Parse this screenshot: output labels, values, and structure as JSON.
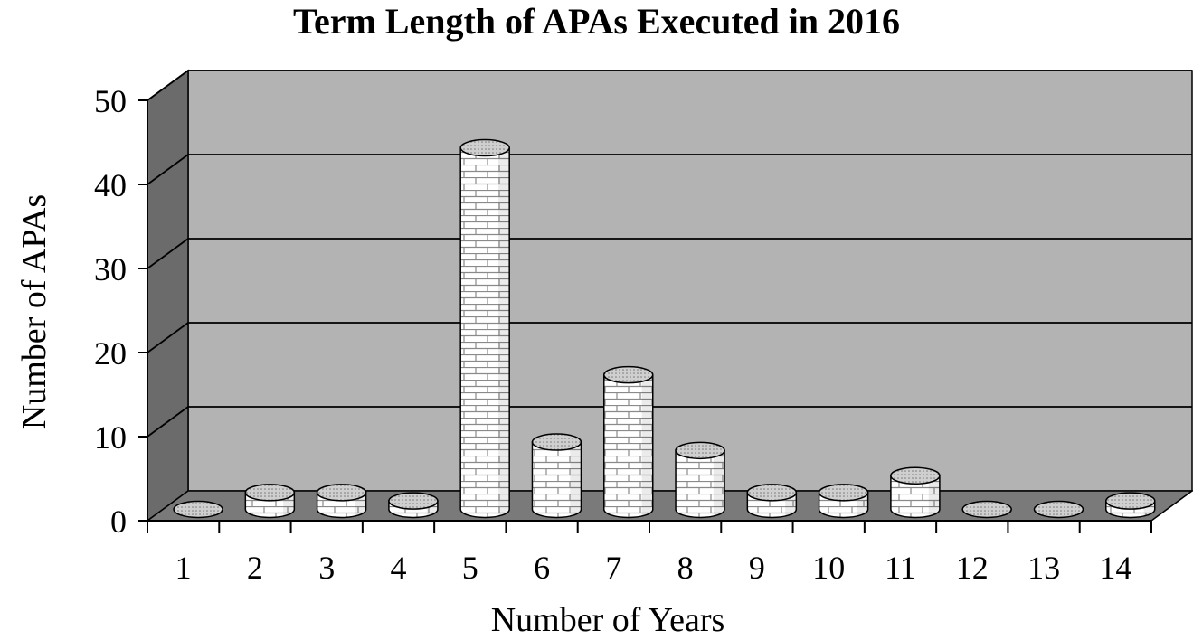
{
  "chart_data": {
    "type": "bar",
    "title": "Term Length of APAs Executed in 2016",
    "xlabel": "Number of Years",
    "ylabel": "Number of APAs",
    "categories": [
      "1",
      "2",
      "3",
      "4",
      "5",
      "6",
      "7",
      "8",
      "9",
      "10",
      "11",
      "12",
      "13",
      "14"
    ],
    "values": [
      0,
      2,
      2,
      1,
      43,
      8,
      16,
      7,
      2,
      2,
      4,
      0,
      0,
      1
    ],
    "ylim": [
      0,
      50
    ],
    "yticks": [
      "0",
      "10",
      "20",
      "30",
      "40",
      "50"
    ],
    "grid": true,
    "legend": "none",
    "colors": {
      "wall": "#b3b3b3",
      "side_wall": "#6b6b6b",
      "floor": "#7a7a7a",
      "bar_fill": "#ffffff",
      "bar_pattern": "#8a8a8a",
      "bar_top": "#c8c8c8"
    }
  }
}
